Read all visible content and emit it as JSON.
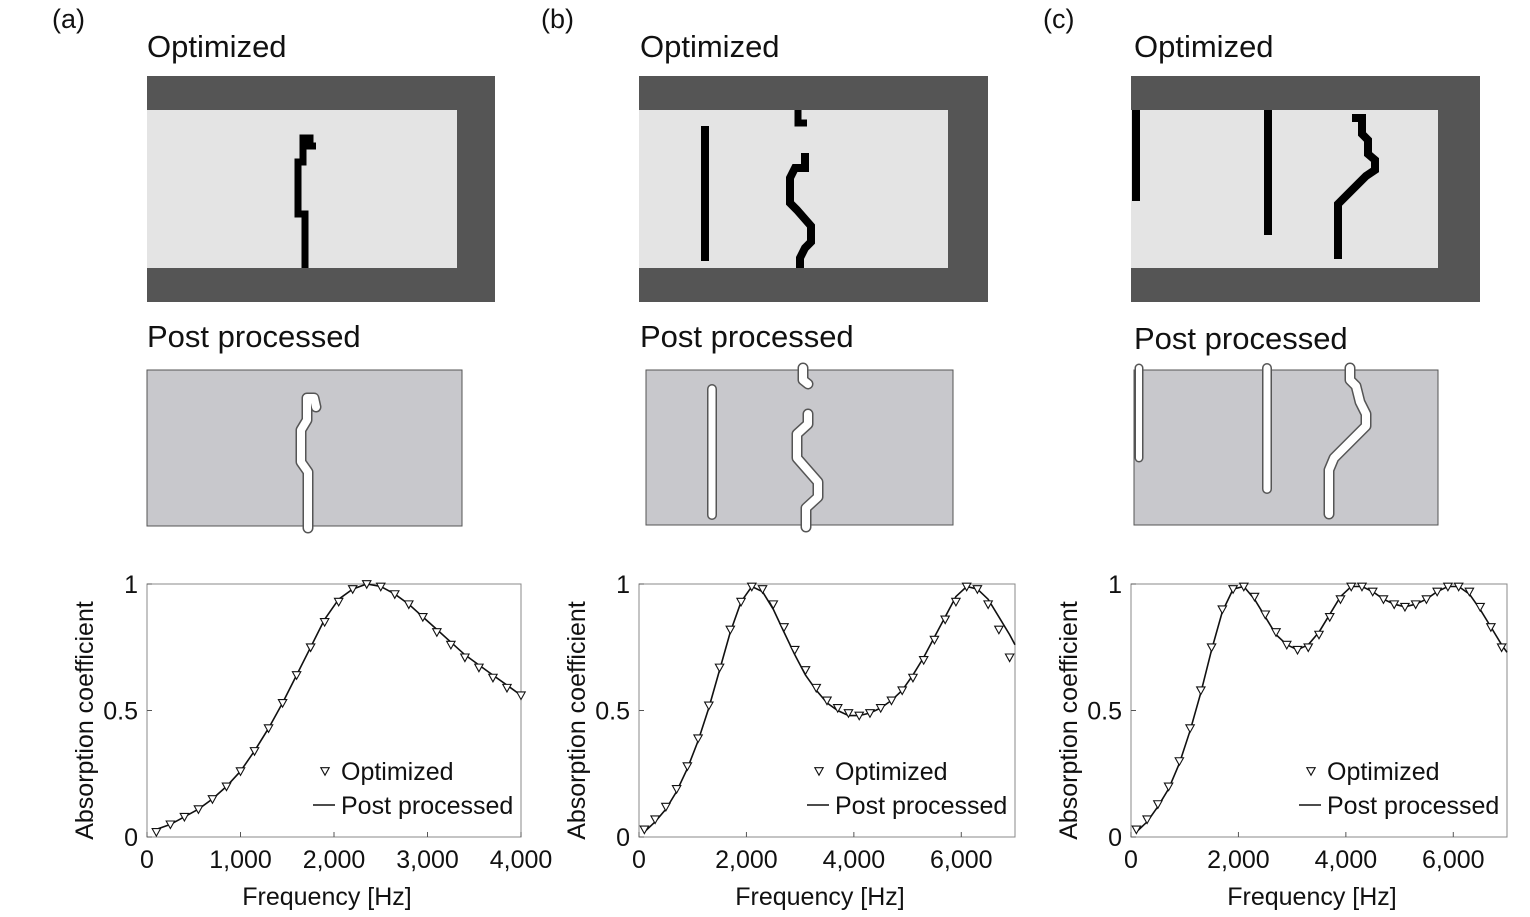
{
  "panels": [
    {
      "panel_label": "(a)",
      "optimized_label": "Optimized",
      "post_processed_label": "Post processed"
    },
    {
      "panel_label": "(b)",
      "optimized_label": "Optimized",
      "post_processed_label": "Post processed"
    },
    {
      "panel_label": "(c)",
      "optimized_label": "Optimized",
      "post_processed_label": "Post processed"
    }
  ],
  "colors": {
    "wall": "#555555",
    "cavity": "#e4e4e4",
    "structure": "#000000",
    "post_processed_fill": "#c8c8cc",
    "slit": "#ffffff",
    "curve": "#111111",
    "marker": "#111111"
  },
  "chart_data": [
    {
      "type": "line",
      "xlabel": "Frequency [Hz]",
      "ylabel": "Absorption coefficient",
      "xlim": [
        0,
        4000
      ],
      "ylim": [
        0,
        1
      ],
      "xticks": [
        "0",
        "1,000",
        "2,000",
        "3,000",
        "4,000"
      ],
      "yticks": [
        "0",
        "0.5",
        "1"
      ],
      "legend_position": "bottom-right",
      "series": [
        {
          "name": "Optimized",
          "marker": "triangle-down",
          "x": [
            100,
            250,
            400,
            550,
            700,
            850,
            1000,
            1150,
            1300,
            1450,
            1600,
            1750,
            1900,
            2050,
            2200,
            2350,
            2500,
            2650,
            2800,
            2950,
            3100,
            3250,
            3400,
            3550,
            3700,
            3850,
            4000
          ],
          "y": [
            0.02,
            0.05,
            0.08,
            0.11,
            0.15,
            0.2,
            0.26,
            0.34,
            0.43,
            0.53,
            0.64,
            0.75,
            0.85,
            0.93,
            0.98,
            1.0,
            0.99,
            0.96,
            0.92,
            0.87,
            0.81,
            0.76,
            0.71,
            0.67,
            0.63,
            0.59,
            0.56
          ]
        },
        {
          "name": "Post processed",
          "marker": "none",
          "x": [
            100,
            250,
            400,
            550,
            700,
            850,
            1000,
            1150,
            1300,
            1450,
            1600,
            1750,
            1900,
            2050,
            2200,
            2350,
            2500,
            2650,
            2800,
            2950,
            3100,
            3250,
            3400,
            3550,
            3700,
            3850,
            4000
          ],
          "y": [
            0.03,
            0.05,
            0.08,
            0.11,
            0.15,
            0.2,
            0.26,
            0.34,
            0.43,
            0.53,
            0.64,
            0.75,
            0.86,
            0.94,
            0.98,
            1.0,
            0.99,
            0.96,
            0.92,
            0.87,
            0.82,
            0.77,
            0.72,
            0.68,
            0.64,
            0.6,
            0.56
          ]
        }
      ]
    },
    {
      "type": "line",
      "xlabel": "Frequency [Hz]",
      "ylabel": "Absorption coefficient",
      "xlim": [
        0,
        7000
      ],
      "ylim": [
        0,
        1
      ],
      "xticks": [
        "0",
        "2,000",
        "4,000",
        "6,000"
      ],
      "yticks": [
        "0",
        "0.5",
        "1"
      ],
      "legend_position": "bottom-right",
      "series": [
        {
          "name": "Optimized",
          "marker": "triangle-down",
          "x": [
            100,
            300,
            500,
            700,
            900,
            1100,
            1300,
            1500,
            1700,
            1900,
            2100,
            2300,
            2500,
            2700,
            2900,
            3100,
            3300,
            3500,
            3700,
            3900,
            4100,
            4300,
            4500,
            4700,
            4900,
            5100,
            5300,
            5500,
            5700,
            5900,
            6100,
            6300,
            6500,
            6700,
            6900
          ],
          "y": [
            0.03,
            0.07,
            0.12,
            0.19,
            0.28,
            0.39,
            0.52,
            0.67,
            0.82,
            0.93,
            0.99,
            0.98,
            0.92,
            0.83,
            0.74,
            0.66,
            0.59,
            0.54,
            0.51,
            0.49,
            0.48,
            0.49,
            0.51,
            0.54,
            0.58,
            0.63,
            0.7,
            0.78,
            0.86,
            0.93,
            0.99,
            0.98,
            0.92,
            0.82,
            0.71
          ]
        },
        {
          "name": "Post processed",
          "marker": "none",
          "x": [
            100,
            300,
            500,
            700,
            900,
            1100,
            1300,
            1500,
            1700,
            1900,
            2100,
            2300,
            2500,
            2700,
            2900,
            3100,
            3300,
            3500,
            3700,
            3900,
            4100,
            4300,
            4500,
            4700,
            4900,
            5100,
            5300,
            5500,
            5700,
            5900,
            6100,
            6300,
            6500,
            6700,
            6900,
            7000
          ],
          "y": [
            0.02,
            0.06,
            0.11,
            0.18,
            0.27,
            0.38,
            0.51,
            0.66,
            0.81,
            0.93,
            0.99,
            0.97,
            0.9,
            0.81,
            0.72,
            0.64,
            0.58,
            0.53,
            0.5,
            0.48,
            0.48,
            0.49,
            0.51,
            0.54,
            0.58,
            0.64,
            0.71,
            0.79,
            0.87,
            0.95,
            0.99,
            0.98,
            0.94,
            0.87,
            0.8,
            0.76
          ]
        }
      ]
    },
    {
      "type": "line",
      "xlabel": "Frequency [Hz]",
      "ylabel": "Absorption coefficient",
      "xlim": [
        0,
        7000
      ],
      "ylim": [
        0,
        1
      ],
      "xticks": [
        "0",
        "2,000",
        "4,000",
        "6,000"
      ],
      "yticks": [
        "0",
        "0.5",
        "1"
      ],
      "legend_position": "bottom-right",
      "series": [
        {
          "name": "Optimized",
          "marker": "triangle-down",
          "x": [
            100,
            300,
            500,
            700,
            900,
            1100,
            1300,
            1500,
            1700,
            1900,
            2100,
            2300,
            2500,
            2700,
            2900,
            3100,
            3300,
            3500,
            3700,
            3900,
            4100,
            4300,
            4500,
            4700,
            4900,
            5100,
            5300,
            5500,
            5700,
            5900,
            6100,
            6300,
            6500,
            6700,
            6900
          ],
          "y": [
            0.03,
            0.07,
            0.13,
            0.2,
            0.3,
            0.43,
            0.58,
            0.75,
            0.9,
            0.98,
            0.99,
            0.95,
            0.88,
            0.81,
            0.76,
            0.74,
            0.75,
            0.8,
            0.87,
            0.94,
            0.99,
            0.99,
            0.97,
            0.94,
            0.92,
            0.91,
            0.92,
            0.94,
            0.97,
            0.99,
            0.99,
            0.97,
            0.91,
            0.83,
            0.75
          ]
        },
        {
          "name": "Post processed",
          "marker": "none",
          "x": [
            100,
            300,
            500,
            700,
            900,
            1100,
            1300,
            1500,
            1700,
            1900,
            2100,
            2300,
            2500,
            2700,
            2900,
            3100,
            3300,
            3500,
            3700,
            3900,
            4100,
            4300,
            4500,
            4700,
            4900,
            5100,
            5300,
            5500,
            5700,
            5900,
            6100,
            6300,
            6500,
            6700,
            6900,
            7000
          ],
          "y": [
            0.02,
            0.06,
            0.12,
            0.19,
            0.29,
            0.42,
            0.57,
            0.74,
            0.89,
            0.98,
            0.99,
            0.94,
            0.87,
            0.8,
            0.76,
            0.74,
            0.76,
            0.81,
            0.88,
            0.95,
            0.99,
            0.99,
            0.97,
            0.94,
            0.92,
            0.91,
            0.92,
            0.94,
            0.97,
            0.99,
            0.99,
            0.96,
            0.9,
            0.83,
            0.76,
            0.73
          ]
        }
      ]
    }
  ]
}
